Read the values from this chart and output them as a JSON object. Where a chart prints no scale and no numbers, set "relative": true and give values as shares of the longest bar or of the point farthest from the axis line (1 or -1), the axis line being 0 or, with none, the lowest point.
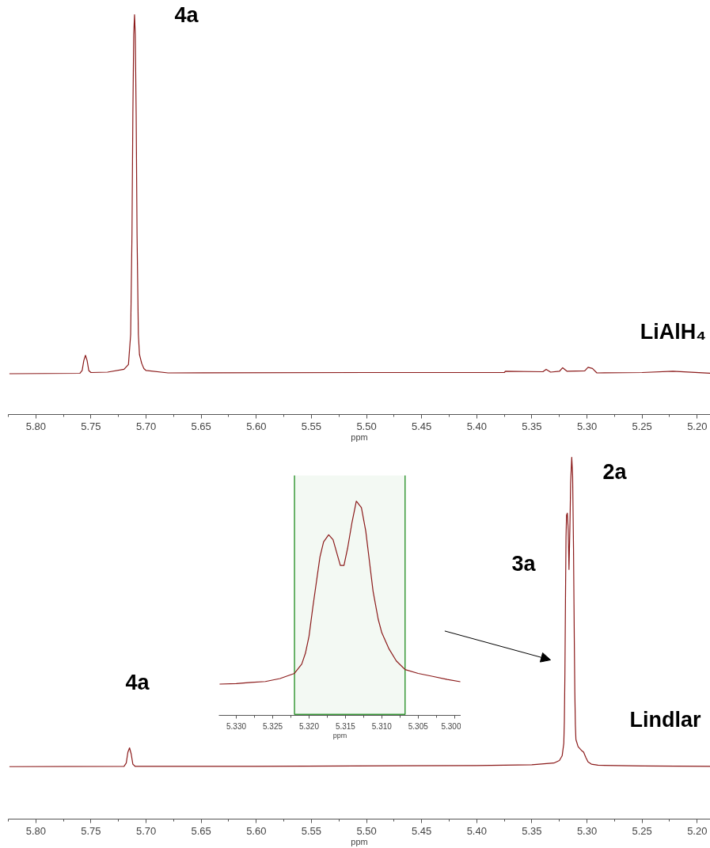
{
  "chart_data": [
    {
      "type": "line",
      "relative": true,
      "xlabel": "ppm",
      "tick_labels": "x",
      "xlim": [
        5.825,
        5.188
      ],
      "xticks": [
        {
          "value": 5.8,
          "label": "5.80"
        },
        5.75,
        {
          "value": 5.7,
          "label": "5.70"
        },
        5.65,
        {
          "value": 5.6,
          "label": "5.60"
        },
        5.55,
        {
          "value": 5.5,
          "label": "5.50"
        },
        5.45,
        {
          "value": 5.4,
          "label": "5.40"
        },
        5.35,
        {
          "value": 5.3,
          "label": "5.30"
        },
        5.25,
        {
          "value": 5.2,
          "label": "5.20"
        },
        {
          "value": 5.825,
          "label": null
        },
        {
          "value": 5.775,
          "label": null
        },
        {
          "value": 5.725,
          "label": null
        },
        {
          "value": 5.675,
          "label": null
        },
        {
          "value": 5.625,
          "label": null
        },
        {
          "value": 5.575,
          "label": null
        },
        {
          "value": 5.525,
          "label": null
        },
        {
          "value": 5.475,
          "label": null
        },
        {
          "value": 5.425,
          "label": null
        },
        {
          "value": 5.375,
          "label": null
        },
        {
          "value": 5.325,
          "label": null
        },
        {
          "value": 5.275,
          "label": null
        },
        {
          "value": 5.225,
          "label": null
        }
      ],
      "x": [
        5.824,
        5.76,
        5.758,
        5.7565,
        5.755,
        5.7535,
        5.752,
        5.75,
        5.735,
        5.72,
        5.716,
        5.714,
        5.7128,
        5.712,
        5.7112,
        5.7105,
        5.7098,
        5.709,
        5.7082,
        5.707,
        5.706,
        5.704,
        5.702,
        5.7,
        5.68,
        5.5,
        5.375,
        5.374,
        5.34,
        5.337,
        5.333,
        5.325,
        5.322,
        5.318,
        5.302,
        5.299,
        5.295,
        5.291,
        5.25,
        5.222,
        5.188
      ],
      "series": [
        {
          "color": "#8b1a1a",
          "values": [
            0.102,
            0.103,
            0.11,
            0.135,
            0.148,
            0.135,
            0.11,
            0.105,
            0.106,
            0.113,
            0.125,
            0.2,
            0.45,
            0.75,
            0.95,
            1.0,
            0.95,
            0.75,
            0.45,
            0.2,
            0.15,
            0.128,
            0.115,
            0.11,
            0.104,
            0.105,
            0.105,
            0.108,
            0.107,
            0.113,
            0.106,
            0.108,
            0.117,
            0.108,
            0.109,
            0.118,
            0.115,
            0.104,
            0.105,
            0.108,
            0.103
          ]
        }
      ],
      "annotations": [
        "4a",
        "LiAlH₄"
      ]
    },
    {
      "type": "line",
      "relative": true,
      "xlabel": "ppm",
      "tick_labels": "x",
      "xlim": [
        5.825,
        5.188
      ],
      "xticks": [
        {
          "value": 5.8,
          "label": "5.80"
        },
        5.75,
        {
          "value": 5.7,
          "label": "5.70"
        },
        5.65,
        {
          "value": 5.6,
          "label": "5.60"
        },
        5.55,
        {
          "value": 5.5,
          "label": "5.50"
        },
        5.45,
        {
          "value": 5.4,
          "label": "5.40"
        },
        5.35,
        {
          "value": 5.3,
          "label": "5.30"
        },
        5.25,
        {
          "value": 5.2,
          "label": "5.20"
        },
        {
          "value": 5.825,
          "label": null
        },
        {
          "value": 5.775,
          "label": null
        },
        {
          "value": 5.725,
          "label": null
        },
        {
          "value": 5.675,
          "label": null
        },
        {
          "value": 5.625,
          "label": null
        },
        {
          "value": 5.575,
          "label": null
        },
        {
          "value": 5.525,
          "label": null
        },
        {
          "value": 5.475,
          "label": null
        },
        {
          "value": 5.425,
          "label": null
        },
        {
          "value": 5.375,
          "label": null
        },
        {
          "value": 5.325,
          "label": null
        },
        {
          "value": 5.275,
          "label": null
        },
        {
          "value": 5.225,
          "label": null
        }
      ],
      "x": [
        5.824,
        5.72,
        5.718,
        5.7165,
        5.715,
        5.7135,
        5.712,
        5.71,
        5.6,
        5.4,
        5.35,
        5.33,
        5.325,
        5.3225,
        5.321,
        5.3205,
        5.32,
        5.3195,
        5.319,
        5.3185,
        5.3178,
        5.317,
        5.3163,
        5.3155,
        5.3148,
        5.3138,
        5.313,
        5.3122,
        5.3115,
        5.311,
        5.3105,
        5.31,
        5.308,
        5.305,
        5.303,
        5.301,
        5.299,
        5.296,
        5.29,
        5.25,
        5.188
      ],
      "series": [
        {
          "color": "#8b1a1a",
          "values": [
            0.145,
            0.146,
            0.155,
            0.185,
            0.197,
            0.18,
            0.152,
            0.146,
            0.146,
            0.148,
            0.15,
            0.155,
            0.162,
            0.175,
            0.21,
            0.27,
            0.4,
            0.6,
            0.78,
            0.84,
            0.846,
            0.8,
            0.69,
            0.8,
            0.93,
            1.0,
            0.95,
            0.75,
            0.5,
            0.35,
            0.26,
            0.22,
            0.2,
            0.19,
            0.185,
            0.17,
            0.158,
            0.152,
            0.149,
            0.147,
            0.146
          ]
        }
      ],
      "annotations": [
        "4a",
        "3a",
        "2a",
        "Lindlar"
      ]
    },
    {
      "type": "line",
      "relative": true,
      "xlabel": "ppm",
      "tick_labels": "x",
      "xlim": [
        5.3324,
        5.2991
      ],
      "xticks": [
        {
          "value": 5.33,
          "label": "5.330"
        },
        5.325,
        {
          "value": 5.32,
          "label": "5.320"
        },
        5.315,
        {
          "value": 5.31,
          "label": "5.310"
        },
        5.305,
        {
          "value": 5.3,
          "label": "5.300"
        },
        {
          "value": 5.3275,
          "label": null
        },
        {
          "value": 5.3225,
          "label": null
        },
        {
          "value": 5.3175,
          "label": null
        },
        {
          "value": 5.3125,
          "label": null
        },
        {
          "value": 5.3075,
          "label": null
        },
        {
          "value": 5.3025,
          "label": null
        }
      ],
      "x": [
        5.3323,
        5.33,
        5.328,
        5.326,
        5.324,
        5.322,
        5.321,
        5.3205,
        5.32,
        5.3195,
        5.319,
        5.3185,
        5.318,
        5.3173,
        5.3167,
        5.3162,
        5.3157,
        5.3152,
        5.3147,
        5.3141,
        5.3135,
        5.3128,
        5.3122,
        5.3117,
        5.3112,
        5.3105,
        5.31,
        5.309,
        5.308,
        5.3068,
        5.305,
        5.303,
        5.301,
        5.2992
      ],
      "series": [
        {
          "color": "#8b1a1a",
          "values": [
            0.146,
            0.148,
            0.154,
            0.158,
            0.172,
            0.196,
            0.24,
            0.29,
            0.37,
            0.5,
            0.62,
            0.74,
            0.81,
            0.843,
            0.82,
            0.76,
            0.7,
            0.7,
            0.78,
            0.9,
            1.0,
            0.97,
            0.86,
            0.72,
            0.58,
            0.45,
            0.386,
            0.31,
            0.254,
            0.214,
            0.196,
            0.182,
            0.168,
            0.157
          ]
        }
      ],
      "bands": [
        {
          "axis": "x",
          "from": 5.322,
          "to": 5.3068,
          "color": "#3a9a3a"
        }
      ]
    }
  ]
}
